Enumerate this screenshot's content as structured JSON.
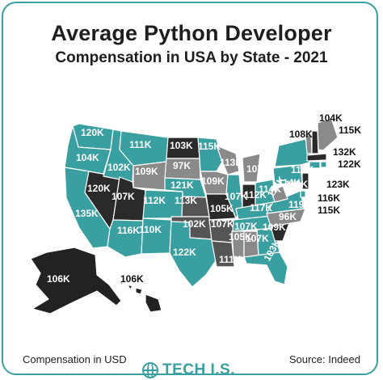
{
  "title": "Average Python Developer",
  "subtitle": "Compensation in USA by State - 2021",
  "footer": {
    "left": "Compensation in USD",
    "right": "Source: Indeed",
    "logo": "TECH I.S."
  },
  "colors": {
    "teal": "#3a9fa0",
    "gray": "#8a8a8a",
    "dark": "#222222",
    "mid": "#555555"
  },
  "states": [
    {
      "state": "Washington",
      "value": "120K"
    },
    {
      "state": "Oregon",
      "value": "104K"
    },
    {
      "state": "California",
      "value": "135K"
    },
    {
      "state": "Nevada",
      "value": "120K"
    },
    {
      "state": "Idaho",
      "value": "102K"
    },
    {
      "state": "Montana",
      "value": "111K"
    },
    {
      "state": "Wyoming",
      "value": "109K"
    },
    {
      "state": "Utah",
      "value": "107K"
    },
    {
      "state": "Arizona",
      "value": "116K"
    },
    {
      "state": "Colorado",
      "value": "112K"
    },
    {
      "state": "New Mexico",
      "value": "110K"
    },
    {
      "state": "North Dakota",
      "value": "103K"
    },
    {
      "state": "South Dakota",
      "value": "97K"
    },
    {
      "state": "Nebraska",
      "value": "121K"
    },
    {
      "state": "Kansas",
      "value": "113K"
    },
    {
      "state": "Oklahoma",
      "value": "102K"
    },
    {
      "state": "Texas",
      "value": "122K"
    },
    {
      "state": "Minnesota",
      "value": "115K"
    },
    {
      "state": "Iowa",
      "value": "109K"
    },
    {
      "state": "Missouri",
      "value": "105K"
    },
    {
      "state": "Arkansas",
      "value": "107K"
    },
    {
      "state": "Louisiana",
      "value": "111K"
    },
    {
      "state": "Wisconsin",
      "value": "113K"
    },
    {
      "state": "Illinois",
      "value": "107K"
    },
    {
      "state": "Michigan",
      "value": "107K"
    },
    {
      "state": "Indiana",
      "value": "112K"
    },
    {
      "state": "Ohio",
      "value": "114K"
    },
    {
      "state": "Kentucky",
      "value": "117K"
    },
    {
      "state": "Tennessee",
      "value": "107K"
    },
    {
      "state": "Mississippi",
      "value": "105K"
    },
    {
      "state": "Alabama",
      "value": "107K"
    },
    {
      "state": "Georgia",
      "value": "109K"
    },
    {
      "state": "Florida",
      "value": "103K"
    },
    {
      "state": "South Carolina",
      "value": "96K"
    },
    {
      "state": "North Carolina",
      "value": "119K"
    },
    {
      "state": "Virginia",
      "value": "116K"
    },
    {
      "state": "West Virginia",
      "value": "114K"
    },
    {
      "state": "Pennsylvania",
      "value": "113K"
    },
    {
      "state": "New York",
      "value": "114K"
    },
    {
      "state": "Vermont",
      "value": "104K"
    },
    {
      "state": "New Hampshire",
      "value": "108K"
    },
    {
      "state": "Maine",
      "value": "115K"
    },
    {
      "state": "Massachusetts",
      "value": "132K"
    },
    {
      "state": "Rhode Island",
      "value": "122K"
    },
    {
      "state": "Connecticut",
      "value": "123K"
    },
    {
      "state": "New Jersey",
      "value": "116K"
    },
    {
      "state": "Delaware",
      "value": "115K"
    },
    {
      "state": "Alaska",
      "value": "106K"
    },
    {
      "state": "Hawaii",
      "value": "106K"
    }
  ]
}
